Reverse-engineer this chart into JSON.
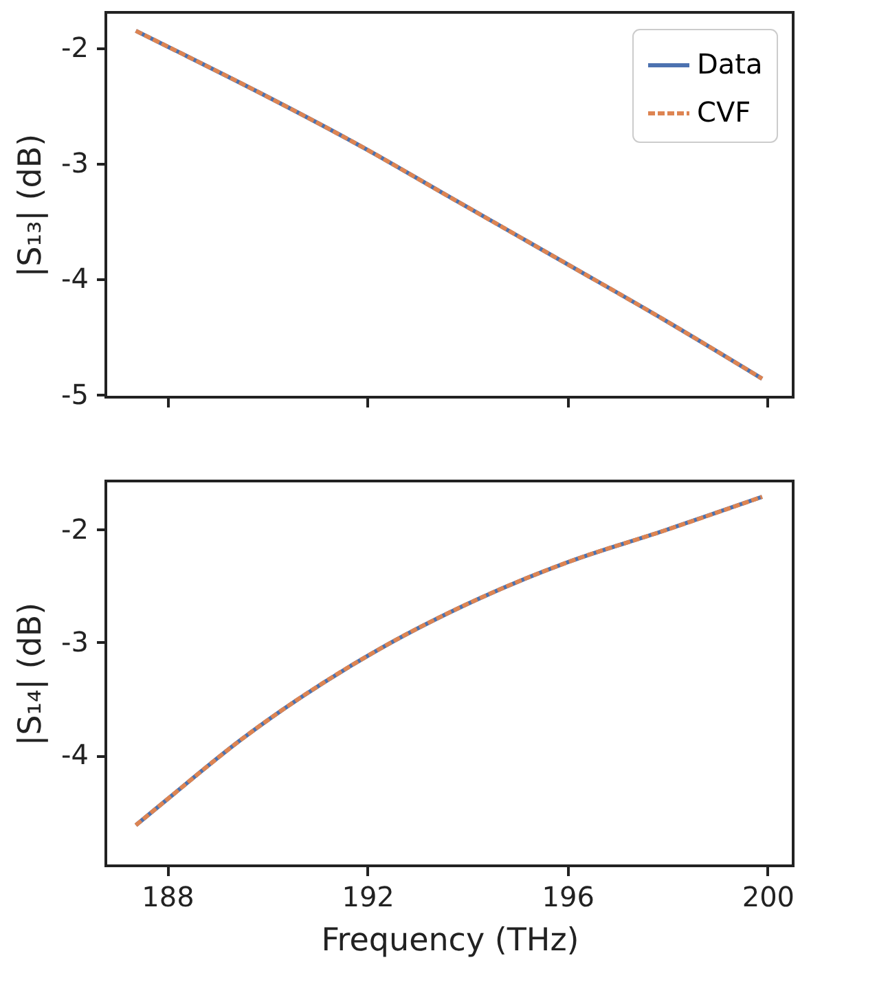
{
  "chart_data": [
    {
      "type": "line",
      "ylabel": "|S₁₃| (dB)",
      "xlim": [
        186.77,
        200.51
      ],
      "xticks": [
        188,
        192,
        196,
        200
      ],
      "ylim": [
        -5.02,
        -1.69
      ],
      "yticks": [
        -5,
        -4,
        -3,
        -2
      ],
      "tick_labels": "y",
      "grid": false,
      "legend": "top right",
      "x": [
        187.37,
        188.21,
        189.82,
        192,
        193.45,
        196,
        197.93,
        199.89
      ],
      "series": [
        {
          "name": "Data",
          "color": "#4c72b0",
          "line_style": "solid",
          "values": [
            -1.85,
            -2.03,
            -2.38,
            -2.88,
            -3.24,
            -3.87,
            -4.35,
            -4.86
          ]
        },
        {
          "name": "CVF",
          "color": "#dd8452",
          "line_style": "dashed",
          "values": [
            -1.85,
            -2.03,
            -2.38,
            -2.88,
            -3.24,
            -3.87,
            -4.35,
            -4.86
          ]
        }
      ]
    },
    {
      "type": "line",
      "ylabel": "|S₁₄| (dB)",
      "xlabel": "Frequency (THz)",
      "xlim": [
        186.77,
        200.51
      ],
      "xticks": [
        188,
        192,
        196,
        200
      ],
      "ylim": [
        -4.98,
        -1.57
      ],
      "yticks": [
        -4,
        -3,
        -2
      ],
      "grid": false,
      "x": [
        187.37,
        188,
        189.45,
        192,
        194.19,
        196,
        197.93,
        199.89
      ],
      "series": [
        {
          "color": "#4c72b0",
          "line_style": "solid",
          "values": [
            -4.62,
            -4.39,
            -3.87,
            -3.12,
            -2.62,
            -2.29,
            -2.01,
            -1.71
          ]
        },
        {
          "color": "#dd8452",
          "line_style": "dashed",
          "values": [
            -4.62,
            -4.39,
            -3.87,
            -3.12,
            -2.62,
            -2.29,
            -2.01,
            -1.71
          ]
        }
      ]
    }
  ]
}
